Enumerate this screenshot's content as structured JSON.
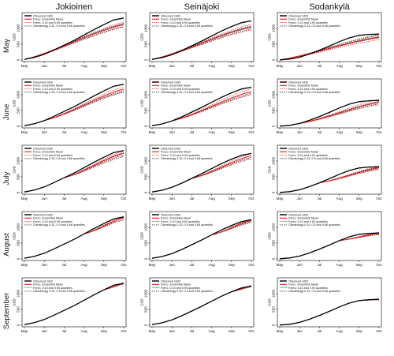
{
  "figure": {
    "columns": [
      "Jokioinen",
      "Seinäjoki",
      "Sodankylä"
    ],
    "rows": [
      "May",
      "June",
      "July",
      "August",
      "September"
    ]
  },
  "legend": [
    {
      "label": "Observed GDD",
      "style": "observed",
      "color": "#000000"
    },
    {
      "label": "Forec. Ensemble Mean",
      "style": "mean",
      "color": "#e41a1c"
    },
    {
      "label": "Forec. 0.10 and 0.90 quantiles",
      "style": "quantile",
      "color": "#e41a1c"
    },
    {
      "label": "Climatology 0.33, 0.5 and 0.66 quantiles",
      "style": "climatology",
      "color": "#000000"
    }
  ],
  "chart_data": {
    "type": "line",
    "ylabel": "GDD",
    "xticks": [
      "May",
      "Jun",
      "Jul",
      "Aug",
      "Sep",
      "Oct"
    ],
    "yticks": [
      0,
      500,
      1000
    ],
    "ylim": [
      0,
      1450
    ],
    "observed": {
      "months": [
        0,
        0.5,
        1,
        1.5,
        2,
        2.5,
        3,
        3.5,
        4,
        4.5,
        5
      ],
      "Jokioinen": [
        20,
        80,
        180,
        320,
        470,
        620,
        790,
        960,
        1120,
        1270,
        1330
      ],
      "Seinäjoki": [
        20,
        75,
        170,
        300,
        450,
        600,
        760,
        920,
        1060,
        1180,
        1240
      ],
      "Sodankylä": [
        5,
        30,
        90,
        190,
        310,
        440,
        580,
        700,
        780,
        810,
        820
      ]
    },
    "panels": [
      {
        "row": "May",
        "station": "Jokioinen",
        "forecast_start_month": 0,
        "forecast_end": [
          1130,
          1040,
          1200
        ],
        "climatology_end": [
          1060,
          1110,
          1160
        ]
      },
      {
        "row": "May",
        "station": "Seinäjoki",
        "forecast_start_month": 0,
        "forecast_end": [
          1050,
          950,
          1130
        ],
        "climatology_end": [
          980,
          1030,
          1080
        ]
      },
      {
        "row": "May",
        "station": "Sodankylä",
        "forecast_start_month": 0,
        "forecast_end": [
          720,
          640,
          800
        ],
        "climatology_end": [
          700,
          740,
          780
        ]
      },
      {
        "row": "June",
        "station": "Jokioinen",
        "forecast_start_month": 1,
        "forecast_end": [
          1180,
          1100,
          1250
        ],
        "climatology_end": [
          1080,
          1130,
          1180
        ]
      },
      {
        "row": "June",
        "station": "Seinäjoki",
        "forecast_start_month": 1,
        "forecast_end": [
          1100,
          1010,
          1190
        ],
        "climatology_end": [
          1000,
          1050,
          1100
        ]
      },
      {
        "row": "June",
        "station": "Sodankylä",
        "forecast_start_month": 1,
        "forecast_end": [
          760,
          680,
          850
        ],
        "climatology_end": [
          710,
          750,
          790
        ]
      },
      {
        "row": "July",
        "station": "Jokioinen",
        "forecast_start_month": 2,
        "forecast_end": [
          1260,
          1200,
          1320
        ],
        "climatology_end": [
          1140,
          1190,
          1240
        ]
      },
      {
        "row": "July",
        "station": "Seinäjoki",
        "forecast_start_month": 2,
        "forecast_end": [
          1170,
          1110,
          1240
        ],
        "climatology_end": [
          1070,
          1120,
          1170
        ]
      },
      {
        "row": "July",
        "station": "Sodankylä",
        "forecast_start_month": 2,
        "forecast_end": [
          790,
          740,
          840
        ],
        "climatology_end": [
          730,
          770,
          810
        ]
      },
      {
        "row": "August",
        "station": "Jokioinen",
        "forecast_start_month": 3,
        "forecast_end": [
          1310,
          1270,
          1350
        ],
        "climatology_end": [
          1230,
          1270,
          1310
        ]
      },
      {
        "row": "August",
        "station": "Seinäjoki",
        "forecast_start_month": 3,
        "forecast_end": [
          1220,
          1180,
          1260
        ],
        "climatology_end": [
          1150,
          1190,
          1230
        ]
      },
      {
        "row": "August",
        "station": "Sodankylä",
        "forecast_start_month": 3,
        "forecast_end": [
          810,
          780,
          840
        ],
        "climatology_end": [
          770,
          800,
          830
        ]
      },
      {
        "row": "September",
        "station": "Jokioinen",
        "forecast_start_month": 4,
        "forecast_end": [
          1330,
          1310,
          1350
        ],
        "climatology_end": [
          1300,
          1320,
          1340
        ]
      },
      {
        "row": "September",
        "station": "Seinäjoki",
        "forecast_start_month": 4,
        "forecast_end": [
          1240,
          1220,
          1260
        ],
        "climatology_end": [
          1210,
          1230,
          1250
        ]
      },
      {
        "row": "September",
        "station": "Sodankylä",
        "forecast_start_month": 4,
        "forecast_end": [
          820,
          805,
          835
        ],
        "climatology_end": [
          800,
          815,
          830
        ]
      }
    ]
  }
}
